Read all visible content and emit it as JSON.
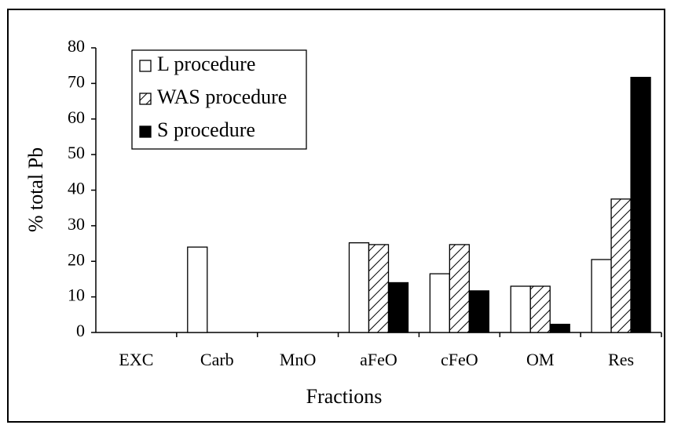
{
  "chart_data": {
    "type": "bar",
    "categories": [
      "EXC",
      "Carb",
      "MnO",
      "aFeO",
      "cFeO",
      "OM",
      "Res"
    ],
    "series": [
      {
        "name": "L procedure",
        "color": "#ffffff",
        "pattern": "solid",
        "values": [
          0,
          24,
          0,
          25.2,
          16.5,
          13,
          20.5
        ]
      },
      {
        "name": "WAS procedure",
        "color": "#ffffff",
        "pattern": "hatch",
        "values": [
          0,
          0,
          0,
          24.7,
          24.7,
          13,
          37.5
        ]
      },
      {
        "name": "S procedure",
        "color": "#000000",
        "pattern": "solid",
        "values": [
          0,
          0,
          0,
          14,
          11.7,
          2.3,
          71.7
        ]
      }
    ],
    "ylabel": "% total Pb",
    "xlabel": "Fractions",
    "ylim": [
      0,
      80
    ],
    "yticks": [
      0,
      10,
      20,
      30,
      40,
      50,
      60,
      70,
      80
    ],
    "legend": "upper left"
  }
}
